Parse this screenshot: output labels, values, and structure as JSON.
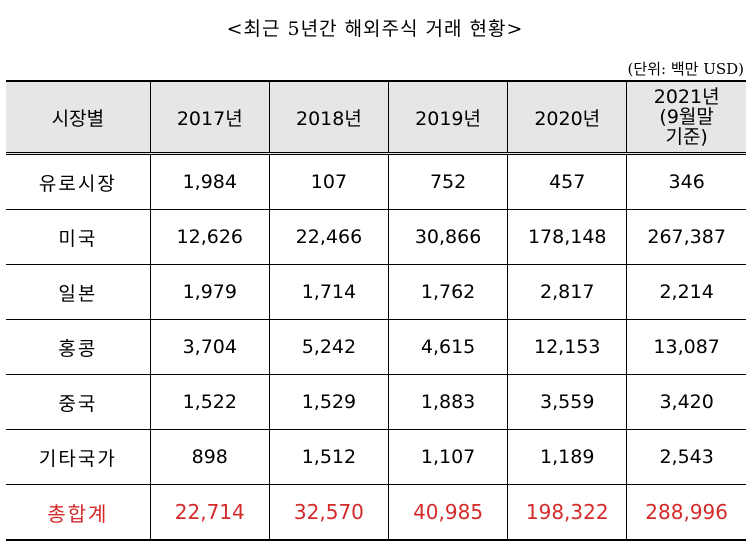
{
  "title": "<최근 5년간 해외주식 거래 현황>",
  "unit_note": "(단위: 백만 USD)",
  "colors": {
    "header_background": "#e6e6e6",
    "total_text": "#d42a2a"
  },
  "table": {
    "headers": [
      "시장별",
      "2017년",
      "2018년",
      "2019년",
      "2020년"
    ],
    "last_header": [
      "2021년",
      "(9월말",
      "기준)"
    ],
    "rows": [
      {
        "label": "유로시장",
        "values": [
          "1,984",
          "107",
          "752",
          "457",
          "346"
        ]
      },
      {
        "label": "미국",
        "values": [
          "12,626",
          "22,466",
          "30,866",
          "178,148",
          "267,387"
        ]
      },
      {
        "label": "일본",
        "values": [
          "1,979",
          "1,714",
          "1,762",
          "2,817",
          "2,214"
        ]
      },
      {
        "label": "홍콩",
        "values": [
          "3,704",
          "5,242",
          "4,615",
          "12,153",
          "13,087"
        ]
      },
      {
        "label": "중국",
        "values": [
          "1,522",
          "1,529",
          "1,883",
          "3,559",
          "3,420"
        ]
      },
      {
        "label": "기타국가",
        "values": [
          "898",
          "1,512",
          "1,107",
          "1,189",
          "2,543"
        ]
      },
      {
        "label": "총합계",
        "values": [
          "22,714",
          "32,570",
          "40,985",
          "198,322",
          "288,996"
        ]
      }
    ]
  }
}
